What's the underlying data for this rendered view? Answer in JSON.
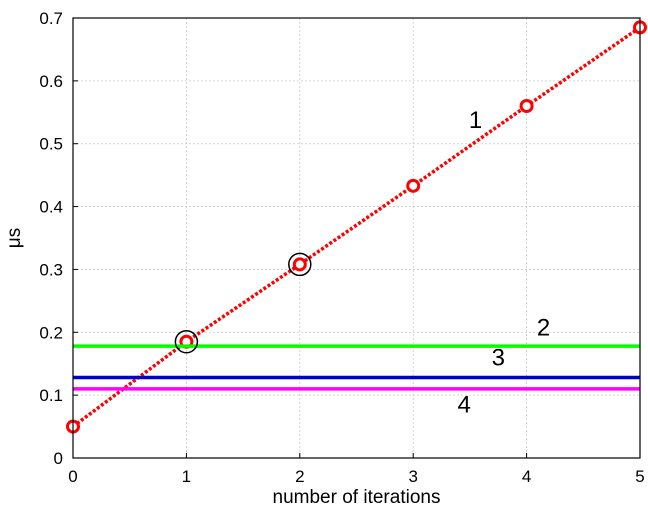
{
  "chart_data": {
    "type": "line",
    "title": "",
    "xlabel": "number of iterations",
    "ylabel": "μs",
    "xlim": [
      0,
      5
    ],
    "ylim": [
      0,
      0.7
    ],
    "xticks": [
      "0",
      "1",
      "2",
      "3",
      "4",
      "5"
    ],
    "yticks": [
      "0",
      "0.1",
      "0.2",
      "0.3",
      "0.4",
      "0.5",
      "0.6",
      "0.7"
    ],
    "grid": true,
    "series": [
      {
        "label": "1",
        "color": "#ff0000",
        "style": "dotted-with-circle-markers",
        "x": [
          0,
          1,
          2,
          3,
          4,
          5
        ],
        "y": [
          0.05,
          0.185,
          0.308,
          0.433,
          0.56,
          0.685
        ]
      },
      {
        "label": "2",
        "color": "#00ff00",
        "style": "horizontal",
        "y": 0.178
      },
      {
        "label": "3",
        "color": "#0000cc",
        "style": "horizontal",
        "y": 0.128
      },
      {
        "label": "4",
        "color": "#ff00ff",
        "style": "horizontal",
        "y": 0.11
      }
    ],
    "highlighted_points": [
      {
        "x": 1,
        "y": 0.185
      },
      {
        "x": 2,
        "y": 0.308
      }
    ],
    "annotations": [
      {
        "text": "1",
        "x": 3.55,
        "y": 0.525
      },
      {
        "text": "2",
        "x": 4.15,
        "y": 0.195
      },
      {
        "text": "3",
        "x": 3.75,
        "y": 0.147
      },
      {
        "text": "4",
        "x": 3.45,
        "y": 0.072
      }
    ]
  }
}
